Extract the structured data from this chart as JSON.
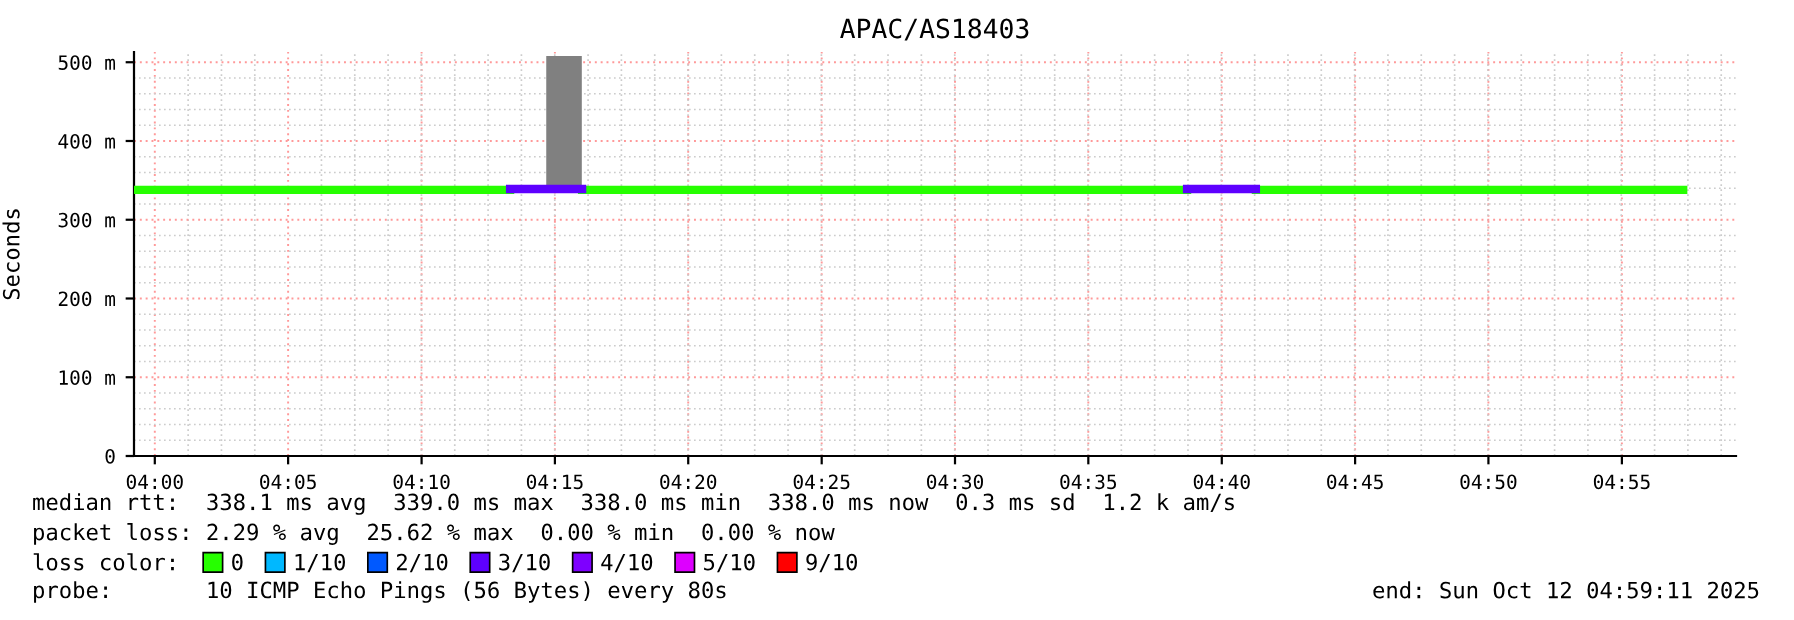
{
  "chart_data": {
    "type": "line",
    "title": "APAC/AS18403",
    "ylabel": "Seconds",
    "xlim": [
      3.987,
      4.988
    ],
    "xticks": [
      {
        "value": 4,
        "label": "04:00"
      },
      {
        "value": 4.0833,
        "label": "04:05"
      },
      {
        "value": 4.1667,
        "label": "04:10"
      },
      {
        "value": 4.25,
        "label": "04:15"
      },
      {
        "value": 4.3333,
        "label": "04:20"
      },
      {
        "value": 4.4167,
        "label": "04:25"
      },
      {
        "value": 4.5,
        "label": "04:30"
      },
      {
        "value": 4.5833,
        "label": "04:35"
      },
      {
        "value": 4.6667,
        "label": "04:40"
      },
      {
        "value": 4.75,
        "label": "04:45"
      },
      {
        "value": 4.8333,
        "label": "04:50"
      },
      {
        "value": 4.9167,
        "label": "04:55"
      }
    ],
    "ylim": [
      0,
      513
    ],
    "yticks": [
      0,
      {
        "value": 100,
        "label": "100 m"
      },
      {
        "value": 200,
        "label": "200 m"
      },
      {
        "value": 300,
        "label": "300 m"
      },
      {
        "value": 400,
        "label": "400 m"
      },
      {
        "value": 500,
        "label": "500 m"
      }
    ],
    "grid": true,
    "legend": "bottom",
    "series": [
      {
        "type": "bar",
        "color": "#808080",
        "x": [
          4.2557
        ],
        "base": [
          344
        ],
        "values": [
          164
        ]
      },
      {
        "name": "0",
        "color": "#26ff00",
        "x": [
          3.987,
          4.222,
          4.244,
          4.267,
          4.645,
          4.666,
          4.688,
          4.955
        ],
        "values": [
          338,
          338,
          null,
          338,
          338,
          null,
          338,
          338
        ]
      },
      {
        "name": "1/10",
        "color": "#00b8ff"
      },
      {
        "name": "2/10",
        "color": "#0059ff"
      },
      {
        "name": "3/10",
        "color": "#5e00ff",
        "x": [
          4.222,
          4.267,
          4.29,
          4.645,
          4.688
        ],
        "values": [
          339,
          339,
          null,
          339,
          339
        ]
      },
      {
        "name": "4/10",
        "color": "#7e00ff"
      },
      {
        "name": "5/10",
        "color": "#dd00ff"
      },
      {
        "name": "9/10",
        "color": "#ff0000"
      }
    ],
    "annotations": [
      "median rtt:  338.1 ms avg  339.0 ms max  338.0 ms min  338.0 ms now  0.3 ms sd  1.2 k am/s",
      "packet loss: 2.29 % avg  25.62 % max  0.00 % min  0.00 % now",
      "loss color:",
      "probe:       10 ICMP Echo Pings (56 Bytes) every 80s",
      "end: Sun Oct 12 04:59:11 2025"
    ]
  }
}
